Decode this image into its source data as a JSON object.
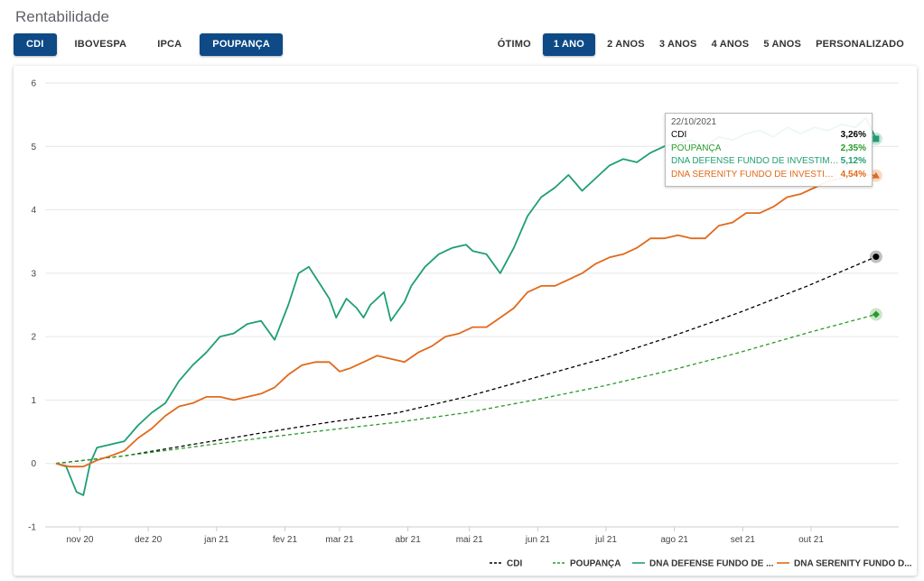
{
  "header": {
    "title": "Rentabilidade"
  },
  "benchmarks": [
    {
      "label": "CDI",
      "active": true
    },
    {
      "label": "IBOVESPA",
      "active": false
    },
    {
      "label": "IPCA",
      "active": false
    },
    {
      "label": "POUPANÇA",
      "active": true
    }
  ],
  "periods": [
    {
      "label": "ÓTIMO",
      "active": false
    },
    {
      "label": "1 ANO",
      "active": true
    },
    {
      "label": "2 ANOS",
      "active": false
    },
    {
      "label": "3 ANOS",
      "active": false
    },
    {
      "label": "4 ANOS",
      "active": false
    },
    {
      "label": "5 ANOS",
      "active": false
    },
    {
      "label": "PERSONALIZADO",
      "active": false
    }
  ],
  "tooltip": {
    "date": "22/10/2021",
    "rows": [
      {
        "label": "CDI",
        "value": "3,26%",
        "color": "#000000"
      },
      {
        "label": "POUPANÇA",
        "value": "2,35%",
        "color": "#2a9a2a"
      },
      {
        "label": "DNA DEFENSE FUNDO DE INVESTIMEN...",
        "value": "5,12%",
        "color": "#1f9e72"
      },
      {
        "label": "DNA SERENITY FUNDO DE INVESTIME...",
        "value": "4,54%",
        "color": "#e06a1a"
      }
    ]
  },
  "chart_data": {
    "type": "line",
    "ylim": [
      -1,
      6
    ],
    "yticks": [
      -1,
      0,
      1,
      2,
      3,
      4,
      5,
      6
    ],
    "xlim": [
      0,
      12.2
    ],
    "xticks": [
      {
        "label": "nov 20",
        "x": 0.35
      },
      {
        "label": "dez 20",
        "x": 1.35
      },
      {
        "label": "jan 21",
        "x": 2.35
      },
      {
        "label": "fev 21",
        "x": 3.35
      },
      {
        "label": "mar 21",
        "x": 4.15
      },
      {
        "label": "abr 21",
        "x": 5.15
      },
      {
        "label": "mai 21",
        "x": 6.05
      },
      {
        "label": "jun 21",
        "x": 7.05
      },
      {
        "label": "jul 21",
        "x": 8.05
      },
      {
        "label": "ago 21",
        "x": 9.05
      },
      {
        "label": "set 21",
        "x": 10.05
      },
      {
        "label": "out 21",
        "x": 11.05
      }
    ],
    "series": [
      {
        "name": "CDI",
        "color": "#000000",
        "dash": true,
        "marker": "circle",
        "points": [
          [
            0,
            0
          ],
          [
            1,
            0.12
          ],
          [
            2,
            0.3
          ],
          [
            3,
            0.48
          ],
          [
            4,
            0.65
          ],
          [
            5,
            0.8
          ],
          [
            6,
            1.05
          ],
          [
            7,
            1.35
          ],
          [
            8,
            1.65
          ],
          [
            9,
            2.0
          ],
          [
            10,
            2.38
          ],
          [
            11,
            2.8
          ],
          [
            12,
            3.26
          ]
        ]
      },
      {
        "name": "POUPANÇA",
        "color": "#2a9a2a",
        "dash": true,
        "marker": "diamond",
        "points": [
          [
            0,
            0
          ],
          [
            1,
            0.12
          ],
          [
            2,
            0.26
          ],
          [
            3,
            0.4
          ],
          [
            4,
            0.53
          ],
          [
            5,
            0.65
          ],
          [
            6,
            0.8
          ],
          [
            7,
            1.0
          ],
          [
            8,
            1.22
          ],
          [
            9,
            1.47
          ],
          [
            10,
            1.75
          ],
          [
            11,
            2.06
          ],
          [
            12,
            2.35
          ]
        ]
      },
      {
        "name": "DNA DEFENSE FUNDO DE ...",
        "color": "#1f9e72",
        "dash": false,
        "marker": "square",
        "points": [
          [
            0,
            0
          ],
          [
            0.15,
            -0.05
          ],
          [
            0.3,
            -0.45
          ],
          [
            0.4,
            -0.5
          ],
          [
            0.5,
            0.0
          ],
          [
            0.6,
            0.25
          ],
          [
            0.8,
            0.3
          ],
          [
            1.0,
            0.35
          ],
          [
            1.2,
            0.6
          ],
          [
            1.4,
            0.8
          ],
          [
            1.6,
            0.95
          ],
          [
            1.8,
            1.3
          ],
          [
            2.0,
            1.55
          ],
          [
            2.2,
            1.75
          ],
          [
            2.4,
            2.0
          ],
          [
            2.6,
            2.05
          ],
          [
            2.8,
            2.2
          ],
          [
            3.0,
            2.25
          ],
          [
            3.2,
            1.95
          ],
          [
            3.4,
            2.5
          ],
          [
            3.55,
            3.0
          ],
          [
            3.7,
            3.1
          ],
          [
            3.85,
            2.85
          ],
          [
            4.0,
            2.6
          ],
          [
            4.1,
            2.3
          ],
          [
            4.25,
            2.6
          ],
          [
            4.4,
            2.45
          ],
          [
            4.5,
            2.3
          ],
          [
            4.6,
            2.5
          ],
          [
            4.8,
            2.7
          ],
          [
            4.9,
            2.25
          ],
          [
            5.1,
            2.55
          ],
          [
            5.2,
            2.8
          ],
          [
            5.4,
            3.1
          ],
          [
            5.6,
            3.3
          ],
          [
            5.8,
            3.4
          ],
          [
            6.0,
            3.45
          ],
          [
            6.1,
            3.35
          ],
          [
            6.3,
            3.3
          ],
          [
            6.5,
            3.0
          ],
          [
            6.7,
            3.4
          ],
          [
            6.9,
            3.9
          ],
          [
            7.1,
            4.2
          ],
          [
            7.3,
            4.35
          ],
          [
            7.5,
            4.55
          ],
          [
            7.7,
            4.3
          ],
          [
            7.9,
            4.5
          ],
          [
            8.1,
            4.7
          ],
          [
            8.3,
            4.8
          ],
          [
            8.5,
            4.75
          ],
          [
            8.7,
            4.9
          ],
          [
            8.9,
            5.0
          ],
          [
            9.1,
            5.05
          ],
          [
            9.3,
            5.1
          ],
          [
            9.5,
            5.0
          ],
          [
            9.7,
            5.15
          ],
          [
            9.9,
            5.1
          ],
          [
            10.1,
            5.2
          ],
          [
            10.3,
            5.25
          ],
          [
            10.5,
            5.15
          ],
          [
            10.7,
            5.3
          ],
          [
            10.9,
            5.2
          ],
          [
            11.1,
            5.3
          ],
          [
            11.3,
            5.25
          ],
          [
            11.5,
            5.35
          ],
          [
            11.7,
            5.3
          ],
          [
            11.85,
            5.45
          ],
          [
            12,
            5.12
          ]
        ]
      },
      {
        "name": "DNA SERENITY FUNDO D...",
        "color": "#e06a1a",
        "dash": false,
        "marker": "triangle",
        "points": [
          [
            0,
            0
          ],
          [
            0.2,
            -0.05
          ],
          [
            0.4,
            -0.05
          ],
          [
            0.6,
            0.05
          ],
          [
            0.8,
            0.12
          ],
          [
            1.0,
            0.2
          ],
          [
            1.2,
            0.4
          ],
          [
            1.4,
            0.55
          ],
          [
            1.6,
            0.75
          ],
          [
            1.8,
            0.9
          ],
          [
            2.0,
            0.95
          ],
          [
            2.2,
            1.05
          ],
          [
            2.4,
            1.05
          ],
          [
            2.6,
            1.0
          ],
          [
            2.8,
            1.05
          ],
          [
            3.0,
            1.1
          ],
          [
            3.2,
            1.2
          ],
          [
            3.4,
            1.4
          ],
          [
            3.6,
            1.55
          ],
          [
            3.8,
            1.6
          ],
          [
            4.0,
            1.6
          ],
          [
            4.15,
            1.45
          ],
          [
            4.3,
            1.5
          ],
          [
            4.5,
            1.6
          ],
          [
            4.7,
            1.7
          ],
          [
            4.9,
            1.65
          ],
          [
            5.1,
            1.6
          ],
          [
            5.3,
            1.75
          ],
          [
            5.5,
            1.85
          ],
          [
            5.7,
            2.0
          ],
          [
            5.9,
            2.05
          ],
          [
            6.1,
            2.15
          ],
          [
            6.3,
            2.15
          ],
          [
            6.5,
            2.3
          ],
          [
            6.7,
            2.45
          ],
          [
            6.9,
            2.7
          ],
          [
            7.1,
            2.8
          ],
          [
            7.3,
            2.8
          ],
          [
            7.5,
            2.9
          ],
          [
            7.7,
            3.0
          ],
          [
            7.9,
            3.15
          ],
          [
            8.1,
            3.25
          ],
          [
            8.3,
            3.3
          ],
          [
            8.5,
            3.4
          ],
          [
            8.7,
            3.55
          ],
          [
            8.9,
            3.55
          ],
          [
            9.1,
            3.6
          ],
          [
            9.3,
            3.55
          ],
          [
            9.5,
            3.55
          ],
          [
            9.7,
            3.75
          ],
          [
            9.9,
            3.8
          ],
          [
            10.1,
            3.95
          ],
          [
            10.3,
            3.95
          ],
          [
            10.5,
            4.05
          ],
          [
            10.7,
            4.2
          ],
          [
            10.9,
            4.25
          ],
          [
            11.1,
            4.35
          ],
          [
            11.3,
            4.45
          ],
          [
            11.5,
            4.5
          ],
          [
            11.7,
            4.6
          ],
          [
            11.85,
            4.55
          ],
          [
            12,
            4.54
          ]
        ]
      }
    ],
    "legend": "bottom-right"
  }
}
